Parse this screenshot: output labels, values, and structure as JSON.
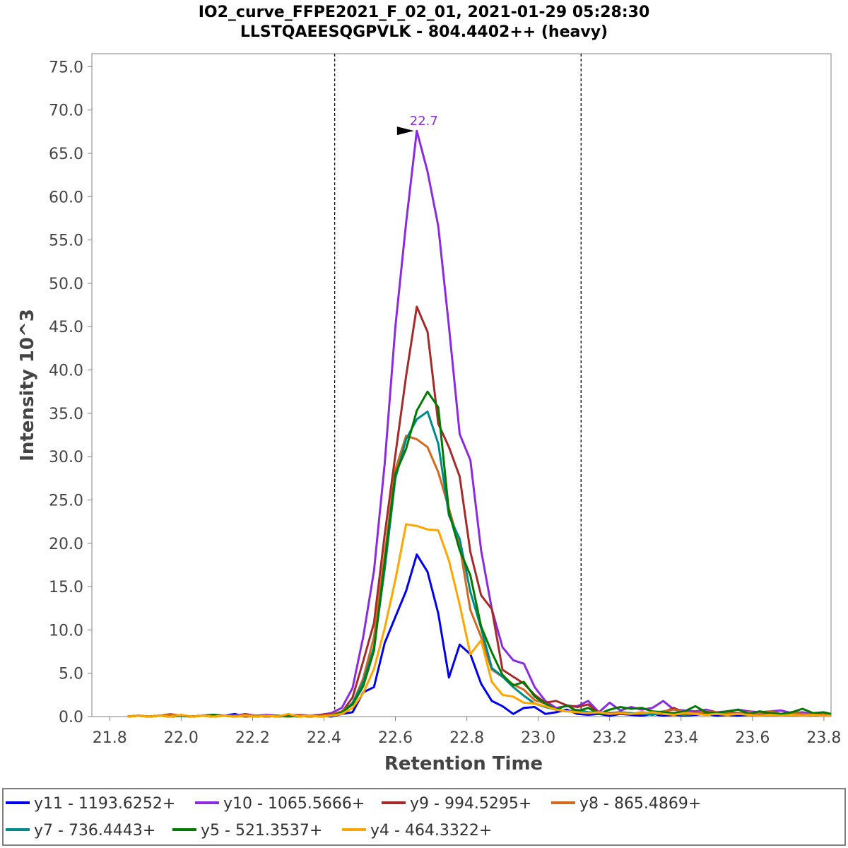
{
  "chart_data": {
    "type": "line",
    "title": "IO2_curve_FFPE2021_F_02_01, 2021-01-29 05:28:30",
    "subtitle": "LLSTQAEESQGPVLK - 804.4402++ (heavy)",
    "xlabel": "Retention Time",
    "ylabel": "Intensity 10^3",
    "xlim": [
      21.75,
      23.82
    ],
    "ylim": [
      0,
      76.5
    ],
    "x_ticks": [
      "21.8",
      "22.0",
      "22.2",
      "22.4",
      "22.6",
      "22.8",
      "23.0",
      "23.2",
      "23.4",
      "23.6",
      "23.8"
    ],
    "y_ticks": [
      "0.0",
      "5.0",
      "10.0",
      "15.0",
      "20.0",
      "25.0",
      "30.0",
      "35.0",
      "40.0",
      "45.0",
      "50.0",
      "55.0",
      "60.0",
      "65.0",
      "70.0",
      "75.0"
    ],
    "integration_bounds": [
      22.43,
      23.12
    ],
    "peak_annotation": {
      "label": "22.7",
      "x": 22.66,
      "y": 67.6,
      "color": "#8a2be2"
    },
    "x": [
      21.85,
      21.88,
      21.91,
      21.94,
      21.97,
      22.0,
      22.03,
      22.06,
      22.09,
      22.12,
      22.15,
      22.18,
      22.21,
      22.24,
      22.27,
      22.3,
      22.33,
      22.36,
      22.39,
      22.42,
      22.45,
      22.48,
      22.51,
      22.54,
      22.57,
      22.6,
      22.63,
      22.66,
      22.69,
      22.72,
      22.75,
      22.78,
      22.81,
      22.84,
      22.87,
      22.9,
      22.93,
      22.96,
      22.99,
      23.02,
      23.05,
      23.08,
      23.11,
      23.14,
      23.17,
      23.2,
      23.23,
      23.26,
      23.29,
      23.32,
      23.35,
      23.38,
      23.41,
      23.44,
      23.47,
      23.5,
      23.53,
      23.56,
      23.59,
      23.62,
      23.65,
      23.68,
      23.71,
      23.74,
      23.77,
      23.8,
      23.82
    ],
    "series": [
      {
        "name": "y11 - 1193.6252+",
        "color": "#0000ee",
        "values": [
          0.0,
          0.1,
          0.0,
          0.1,
          0.0,
          0.1,
          0.0,
          0.1,
          0.0,
          0.1,
          0.3,
          0.0,
          0.1,
          0.0,
          0.1,
          0.0,
          0.1,
          0.0,
          0.1,
          0.0,
          0.3,
          0.5,
          2.8,
          3.4,
          8.5,
          11.5,
          14.5,
          18.7,
          16.7,
          11.9,
          4.5,
          8.3,
          7.2,
          3.8,
          1.8,
          1.2,
          0.3,
          1.0,
          1.1,
          0.3,
          0.5,
          0.8,
          0.3,
          0.2,
          0.3,
          0.1,
          0.3,
          0.2,
          0.1,
          0.3,
          0.1,
          0.2,
          0.1,
          0.2,
          0.3,
          0.1,
          0.2,
          0.1,
          0.2,
          0.1,
          0.2,
          0.1,
          0.2,
          0.1,
          0.2,
          0.1,
          0.1
        ]
      },
      {
        "name": "y10 - 1065.5666+",
        "color": "#8a2be2",
        "values": [
          0.0,
          0.1,
          0.0,
          0.1,
          0.2,
          0.1,
          0.0,
          0.1,
          0.2,
          0.1,
          0.1,
          0.3,
          0.1,
          0.2,
          0.1,
          0.1,
          0.2,
          0.1,
          0.2,
          0.4,
          1.0,
          3.3,
          9.2,
          16.8,
          29.2,
          45.0,
          57.0,
          67.6,
          62.9,
          56.6,
          45.0,
          32.6,
          29.6,
          19.2,
          12.4,
          8.0,
          6.5,
          6.1,
          3.4,
          1.8,
          1.0,
          1.2,
          1.2,
          1.8,
          0.5,
          1.6,
          0.7,
          1.1,
          0.8,
          1.0,
          1.8,
          0.8,
          0.7,
          0.6,
          0.8,
          0.5,
          0.6,
          0.8,
          0.6,
          0.5,
          0.6,
          0.7,
          0.4,
          0.5,
          0.3,
          0.4,
          0.3
        ]
      },
      {
        "name": "y9 - 994.5295+",
        "color": "#a52a2a",
        "values": [
          0.0,
          0.1,
          0.0,
          0.1,
          0.0,
          0.1,
          0.0,
          0.1,
          0.0,
          0.1,
          0.1,
          0.0,
          0.1,
          0.0,
          0.1,
          0.0,
          0.1,
          0.0,
          0.2,
          0.3,
          0.5,
          2.2,
          6.4,
          10.8,
          21.0,
          30.2,
          39.3,
          47.3,
          44.4,
          33.8,
          31.1,
          27.7,
          19.0,
          14.0,
          12.4,
          5.4,
          4.6,
          3.8,
          2.5,
          1.6,
          1.8,
          1.3,
          1.1,
          1.4,
          0.4,
          0.4,
          0.5,
          0.3,
          0.4,
          0.3,
          0.5,
          1.0,
          0.4,
          0.5,
          0.3,
          0.4,
          0.5,
          0.4,
          0.3,
          0.2,
          0.4,
          0.3,
          0.5,
          0.3,
          0.2,
          0.3,
          0.2
        ]
      },
      {
        "name": "y8 - 865.4869+",
        "color": "#d2691e",
        "values": [
          0.0,
          0.1,
          0.0,
          0.1,
          0.3,
          0.1,
          0.0,
          0.1,
          0.0,
          0.1,
          0.1,
          0.2,
          0.1,
          0.0,
          0.1,
          0.0,
          0.2,
          0.0,
          0.1,
          0.2,
          0.6,
          1.5,
          4.4,
          9.2,
          18.7,
          28.5,
          32.4,
          32.0,
          31.1,
          28.2,
          24.0,
          19.7,
          12.3,
          9.2,
          5.4,
          4.6,
          3.7,
          3.1,
          1.9,
          1.5,
          0.8,
          0.6,
          0.8,
          0.5,
          0.4,
          0.3,
          0.4,
          0.3,
          0.5,
          0.4,
          0.6,
          0.8,
          0.5,
          0.4,
          0.6,
          0.5,
          0.4,
          0.3,
          0.5,
          0.4,
          0.6,
          0.3,
          0.4,
          0.3,
          0.2,
          0.3,
          0.2
        ]
      },
      {
        "name": "y7 - 736.4443+",
        "color": "#008b8b",
        "values": [
          0.0,
          0.1,
          0.0,
          0.1,
          0.0,
          0.1,
          0.0,
          0.1,
          0.0,
          0.1,
          0.0,
          0.1,
          0.0,
          0.1,
          0.0,
          0.1,
          0.0,
          0.1,
          0.0,
          0.1,
          0.4,
          1.6,
          4.0,
          8.0,
          17.0,
          27.5,
          32.0,
          34.3,
          35.2,
          31.5,
          23.2,
          20.5,
          14.4,
          10.2,
          5.6,
          4.6,
          3.4,
          2.4,
          1.5,
          1.1,
          0.8,
          0.6,
          0.7,
          0.5,
          0.4,
          0.3,
          0.5,
          0.4,
          0.3,
          0.2,
          0.4,
          0.3,
          0.2,
          0.3,
          0.2,
          0.3,
          0.2,
          0.3,
          0.2,
          0.1,
          0.2,
          0.3,
          0.2,
          0.1,
          0.2,
          0.1,
          0.1
        ]
      },
      {
        "name": "y5 - 521.3537+",
        "color": "#007a00",
        "values": [
          0.0,
          0.1,
          0.0,
          0.1,
          0.0,
          0.1,
          0.0,
          0.1,
          0.2,
          0.1,
          0.0,
          0.1,
          0.0,
          0.1,
          0.0,
          0.1,
          0.0,
          0.1,
          0.0,
          0.1,
          0.5,
          1.4,
          3.5,
          7.6,
          17.8,
          28.0,
          30.9,
          35.3,
          37.5,
          35.7,
          23.6,
          19.2,
          16.3,
          10.4,
          7.4,
          4.8,
          3.6,
          4.0,
          2.3,
          1.5,
          0.8,
          1.3,
          0.6,
          1.0,
          0.3,
          0.8,
          1.1,
          0.9,
          1.0,
          0.6,
          0.5,
          0.4,
          0.6,
          1.2,
          0.5,
          0.4,
          0.6,
          0.8,
          0.3,
          0.6,
          0.4,
          0.3,
          0.5,
          0.9,
          0.4,
          0.5,
          0.3
        ]
      },
      {
        "name": "y4 - 464.3322+",
        "color": "#ffa500",
        "values": [
          0.0,
          0.1,
          0.0,
          0.1,
          0.0,
          0.2,
          0.0,
          0.1,
          0.0,
          0.1,
          0.0,
          0.1,
          0.0,
          0.1,
          0.0,
          0.3,
          0.0,
          0.1,
          0.0,
          0.1,
          0.3,
          1.0,
          2.7,
          5.5,
          10.2,
          15.8,
          22.2,
          22.0,
          21.6,
          21.5,
          18.0,
          12.9,
          7.2,
          8.8,
          4.0,
          2.5,
          2.3,
          1.6,
          1.5,
          1.2,
          0.8,
          0.6,
          0.5,
          0.4,
          0.5,
          0.3,
          0.4,
          0.3,
          0.4,
          0.5,
          0.3,
          0.2,
          0.4,
          0.3,
          0.2,
          0.3,
          0.2,
          0.3,
          0.2,
          0.1,
          0.2,
          0.1,
          0.2,
          0.1,
          0.2,
          0.1,
          0.1
        ]
      }
    ]
  }
}
